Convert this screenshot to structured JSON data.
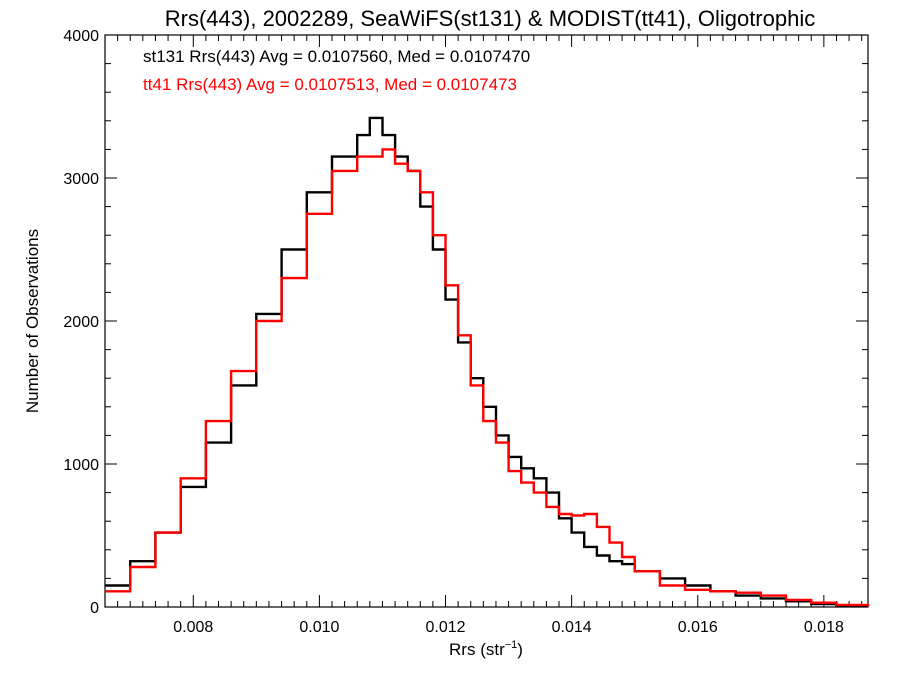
{
  "chart_data": {
    "type": "line",
    "title": "Rrs(443), 2002289, SeaWiFS(st131) & MODIST(tt41), Oligotrophic",
    "xlabel_base": "Rrs (str",
    "xlabel_sup": "−1",
    "xlabel_end": ")",
    "ylabel": "Number of Observations",
    "xlim": [
      0.0066,
      0.0187
    ],
    "ylim": [
      0,
      4000
    ],
    "x_ticks": [
      {
        "value": 0.008,
        "label": "0.008"
      },
      {
        "value": 0.01,
        "label": "0.010"
      },
      {
        "value": 0.012,
        "label": "0.012"
      },
      {
        "value": 0.014,
        "label": "0.014"
      },
      {
        "value": 0.016,
        "label": "0.016"
      },
      {
        "value": 0.018,
        "label": "0.018"
      }
    ],
    "y_ticks": [
      {
        "value": 0,
        "label": "0"
      },
      {
        "value": 1000,
        "label": "1000"
      },
      {
        "value": 2000,
        "label": "2000"
      },
      {
        "value": 3000,
        "label": "3000"
      },
      {
        "value": 4000,
        "label": "4000"
      }
    ],
    "grid": false,
    "legend_position": "top-left",
    "series": [
      {
        "legend": "st131 Rrs(443) Avg = 0.0107560, Med = 0.0107470",
        "color": "#000000",
        "points": [
          [
            0.0066,
            150
          ],
          [
            0.007,
            320
          ],
          [
            0.0074,
            520
          ],
          [
            0.0078,
            840
          ],
          [
            0.0082,
            1150
          ],
          [
            0.0086,
            1550
          ],
          [
            0.009,
            2050
          ],
          [
            0.0094,
            2500
          ],
          [
            0.0098,
            2900
          ],
          [
            0.0102,
            3150
          ],
          [
            0.0106,
            3300
          ],
          [
            0.0108,
            3420
          ],
          [
            0.011,
            3300
          ],
          [
            0.0112,
            3150
          ],
          [
            0.0114,
            3050
          ],
          [
            0.0116,
            2800
          ],
          [
            0.0118,
            2500
          ],
          [
            0.012,
            2150
          ],
          [
            0.0122,
            1850
          ],
          [
            0.0124,
            1600
          ],
          [
            0.0126,
            1400
          ],
          [
            0.0128,
            1200
          ],
          [
            0.013,
            1050
          ],
          [
            0.0132,
            970
          ],
          [
            0.0134,
            900
          ],
          [
            0.0136,
            800
          ],
          [
            0.0138,
            620
          ],
          [
            0.014,
            520
          ],
          [
            0.0142,
            420
          ],
          [
            0.0144,
            360
          ],
          [
            0.0146,
            320
          ],
          [
            0.0148,
            300
          ],
          [
            0.015,
            250
          ],
          [
            0.0154,
            200
          ],
          [
            0.0158,
            150
          ],
          [
            0.0162,
            110
          ],
          [
            0.0166,
            80
          ],
          [
            0.017,
            60
          ],
          [
            0.0174,
            40
          ],
          [
            0.0178,
            20
          ],
          [
            0.0182,
            10
          ],
          [
            0.0187,
            5
          ]
        ]
      },
      {
        "legend": "tt41 Rrs(443) Avg = 0.0107513, Med = 0.0107473",
        "color": "#ff0000",
        "points": [
          [
            0.0066,
            110
          ],
          [
            0.007,
            280
          ],
          [
            0.0074,
            520
          ],
          [
            0.0078,
            900
          ],
          [
            0.0082,
            1300
          ],
          [
            0.0086,
            1650
          ],
          [
            0.009,
            2000
          ],
          [
            0.0094,
            2300
          ],
          [
            0.0098,
            2750
          ],
          [
            0.0102,
            3050
          ],
          [
            0.0106,
            3150
          ],
          [
            0.0108,
            3150
          ],
          [
            0.011,
            3200
          ],
          [
            0.0112,
            3100
          ],
          [
            0.0114,
            3050
          ],
          [
            0.0116,
            2900
          ],
          [
            0.0118,
            2600
          ],
          [
            0.012,
            2250
          ],
          [
            0.0122,
            1900
          ],
          [
            0.0124,
            1550
          ],
          [
            0.0126,
            1300
          ],
          [
            0.0128,
            1150
          ],
          [
            0.013,
            950
          ],
          [
            0.0132,
            870
          ],
          [
            0.0134,
            800
          ],
          [
            0.0136,
            700
          ],
          [
            0.0138,
            650
          ],
          [
            0.014,
            640
          ],
          [
            0.0142,
            650
          ],
          [
            0.0144,
            560
          ],
          [
            0.0146,
            450
          ],
          [
            0.0148,
            350
          ],
          [
            0.015,
            250
          ],
          [
            0.0154,
            150
          ],
          [
            0.0158,
            120
          ],
          [
            0.0162,
            110
          ],
          [
            0.0166,
            100
          ],
          [
            0.017,
            80
          ],
          [
            0.0174,
            50
          ],
          [
            0.0178,
            30
          ],
          [
            0.0182,
            15
          ],
          [
            0.0187,
            5
          ]
        ]
      }
    ]
  }
}
